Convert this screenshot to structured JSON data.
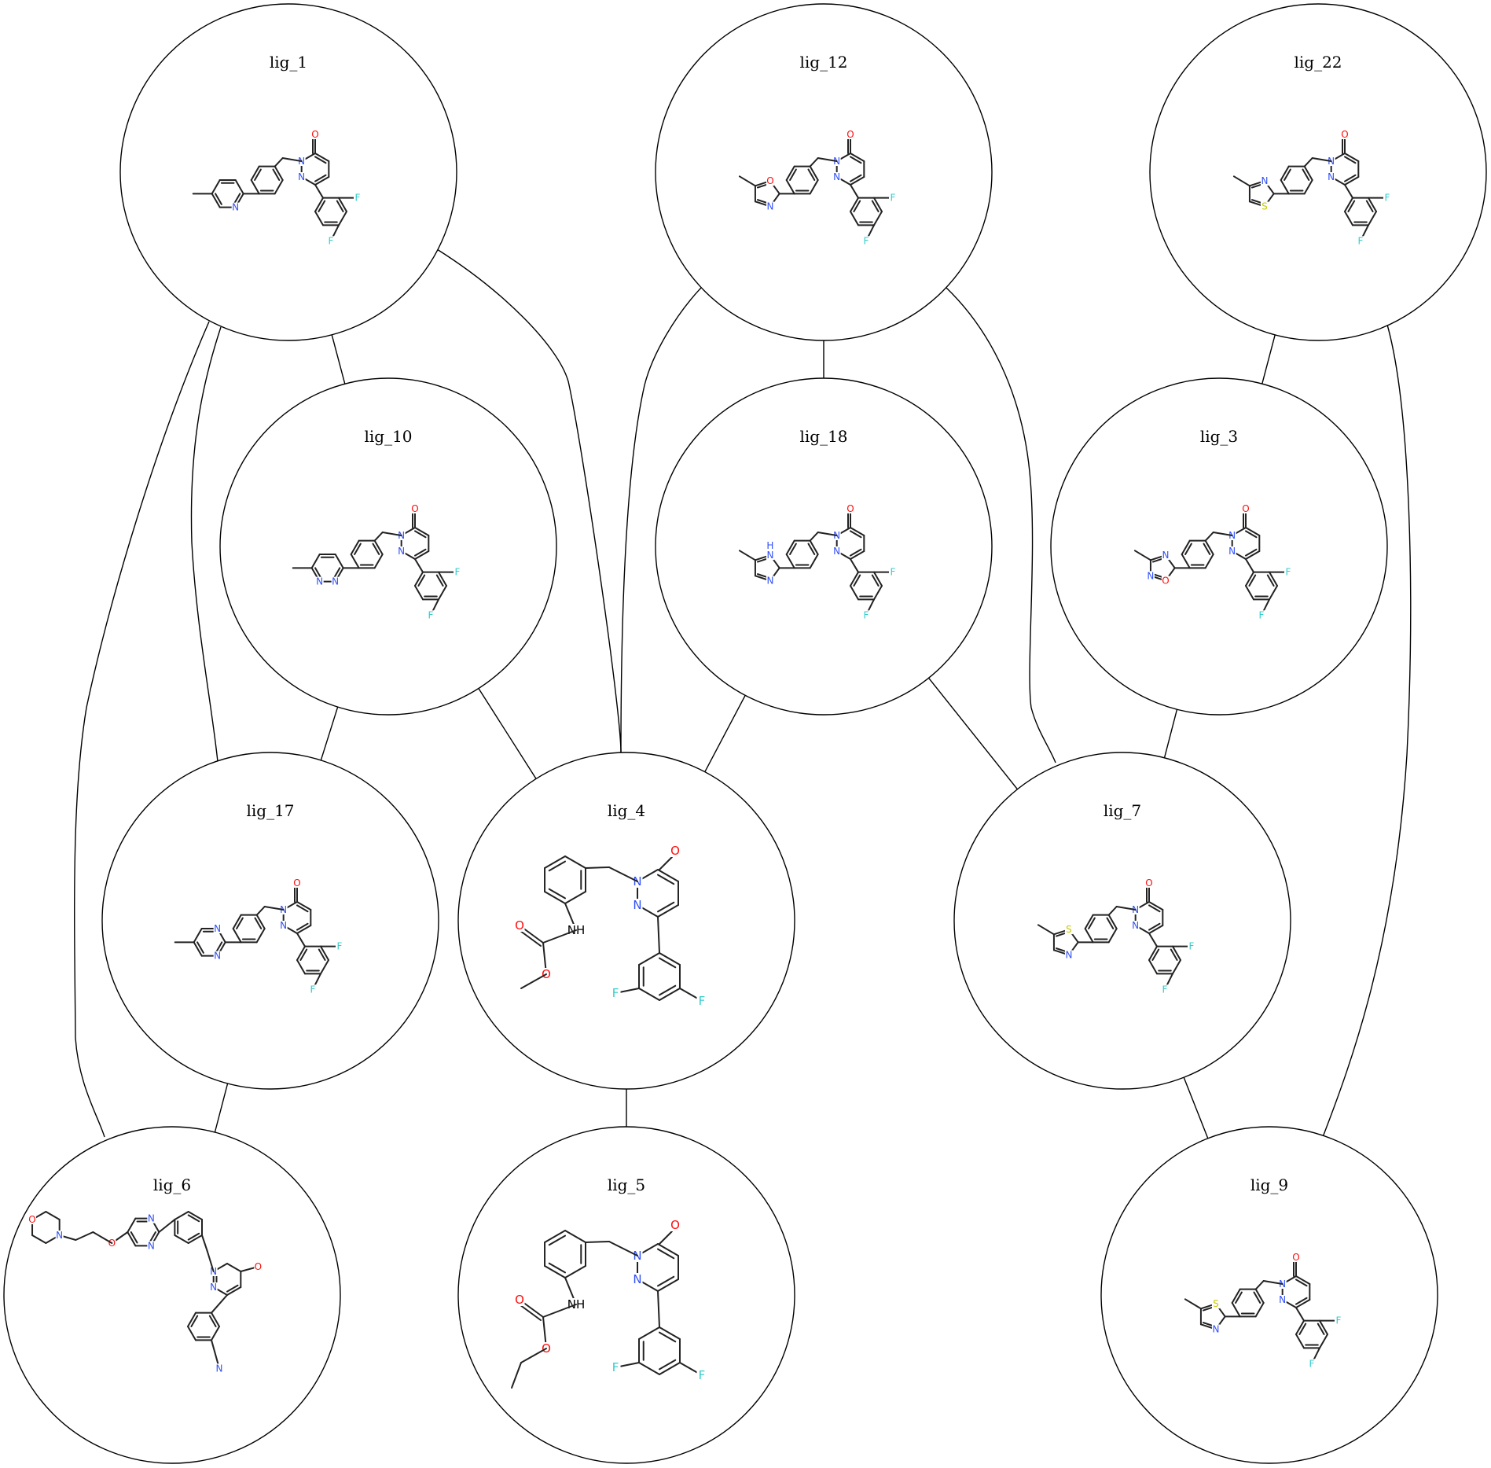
{
  "nodes": [
    {
      "id": "lig_1",
      "label": "lig_1"
    },
    {
      "id": "lig_12",
      "label": "lig_12"
    },
    {
      "id": "lig_22",
      "label": "lig_22"
    },
    {
      "id": "lig_10",
      "label": "lig_10"
    },
    {
      "id": "lig_18",
      "label": "lig_18"
    },
    {
      "id": "lig_3",
      "label": "lig_3"
    },
    {
      "id": "lig_17",
      "label": "lig_17"
    },
    {
      "id": "lig_4",
      "label": "lig_4"
    },
    {
      "id": "lig_7",
      "label": "lig_7"
    },
    {
      "id": "lig_6",
      "label": "lig_6"
    },
    {
      "id": "lig_5",
      "label": "lig_5"
    },
    {
      "id": "lig_9",
      "label": "lig_9"
    }
  ],
  "edges": [
    [
      "lig_1",
      "lig_10"
    ],
    [
      "lig_1",
      "lig_4"
    ],
    [
      "lig_1",
      "lig_17"
    ],
    [
      "lig_1",
      "lig_6"
    ],
    [
      "lig_12",
      "lig_18"
    ],
    [
      "lig_12",
      "lig_4"
    ],
    [
      "lig_12",
      "lig_7"
    ],
    [
      "lig_22",
      "lig_3"
    ],
    [
      "lig_22",
      "lig_9"
    ],
    [
      "lig_10",
      "lig_17"
    ],
    [
      "lig_10",
      "lig_4"
    ],
    [
      "lig_18",
      "lig_4"
    ],
    [
      "lig_18",
      "lig_7"
    ],
    [
      "lig_3",
      "lig_7"
    ],
    [
      "lig_17",
      "lig_6"
    ],
    [
      "lig_4",
      "lig_5"
    ],
    [
      "lig_7",
      "lig_9"
    ]
  ],
  "atom_symbols": {
    "oxygen": "O",
    "nitrogen": "N",
    "fluorine": "F",
    "sulfur": "S",
    "amine": "NH",
    "azole_nh": "H"
  },
  "colors": {
    "oxygen": "#ff0d0d",
    "nitrogen": "#3050f8",
    "fluorine": "#33cccc",
    "sulfur": "#c8c800",
    "carbon": "#222222"
  }
}
